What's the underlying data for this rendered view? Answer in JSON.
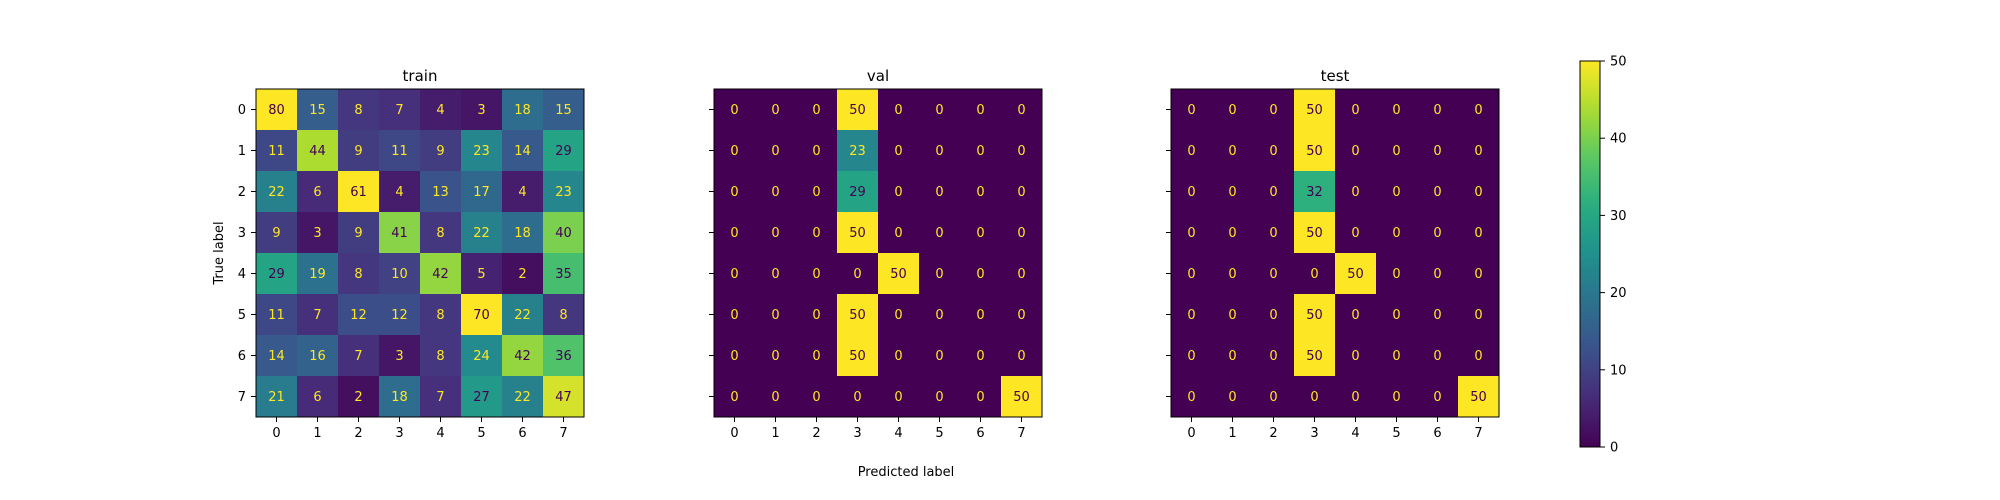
{
  "chart_data": {
    "type": "heatmap",
    "shared_xlabel": "Predicted label",
    "shared_ylabel": "True label",
    "labels": [
      "0",
      "1",
      "2",
      "3",
      "4",
      "5",
      "6",
      "7"
    ],
    "panels": [
      {
        "title": "train",
        "matrix": [
          [
            80,
            15,
            8,
            7,
            4,
            3,
            18,
            15
          ],
          [
            11,
            44,
            9,
            11,
            9,
            23,
            14,
            29
          ],
          [
            22,
            6,
            61,
            4,
            13,
            17,
            4,
            23
          ],
          [
            9,
            3,
            9,
            41,
            8,
            22,
            18,
            40
          ],
          [
            29,
            19,
            8,
            10,
            42,
            5,
            2,
            35
          ],
          [
            11,
            7,
            12,
            12,
            8,
            70,
            22,
            8
          ],
          [
            14,
            16,
            7,
            3,
            8,
            24,
            42,
            36
          ],
          [
            21,
            6,
            2,
            18,
            7,
            27,
            22,
            47
          ]
        ]
      },
      {
        "title": "val",
        "matrix": [
          [
            0,
            0,
            0,
            50,
            0,
            0,
            0,
            0
          ],
          [
            0,
            0,
            0,
            23,
            0,
            0,
            0,
            0
          ],
          [
            0,
            0,
            0,
            29,
            0,
            0,
            0,
            0
          ],
          [
            0,
            0,
            0,
            50,
            0,
            0,
            0,
            0
          ],
          [
            0,
            0,
            0,
            0,
            50,
            0,
            0,
            0
          ],
          [
            0,
            0,
            0,
            50,
            0,
            0,
            0,
            0
          ],
          [
            0,
            0,
            0,
            50,
            0,
            0,
            0,
            0
          ],
          [
            0,
            0,
            0,
            0,
            0,
            0,
            0,
            50
          ]
        ]
      },
      {
        "title": "test",
        "matrix": [
          [
            0,
            0,
            0,
            50,
            0,
            0,
            0,
            0
          ],
          [
            0,
            0,
            0,
            50,
            0,
            0,
            0,
            0
          ],
          [
            0,
            0,
            0,
            32,
            0,
            0,
            0,
            0
          ],
          [
            0,
            0,
            0,
            50,
            0,
            0,
            0,
            0
          ],
          [
            0,
            0,
            0,
            0,
            50,
            0,
            0,
            0
          ],
          [
            0,
            0,
            0,
            50,
            0,
            0,
            0,
            0
          ],
          [
            0,
            0,
            0,
            50,
            0,
            0,
            0,
            0
          ],
          [
            0,
            0,
            0,
            0,
            0,
            0,
            0,
            50
          ]
        ]
      }
    ],
    "colorbar": {
      "colormap": "viridis",
      "range": [
        0,
        50
      ],
      "ticks": [
        0,
        10,
        20,
        30,
        40,
        50
      ]
    },
    "grid": false
  }
}
